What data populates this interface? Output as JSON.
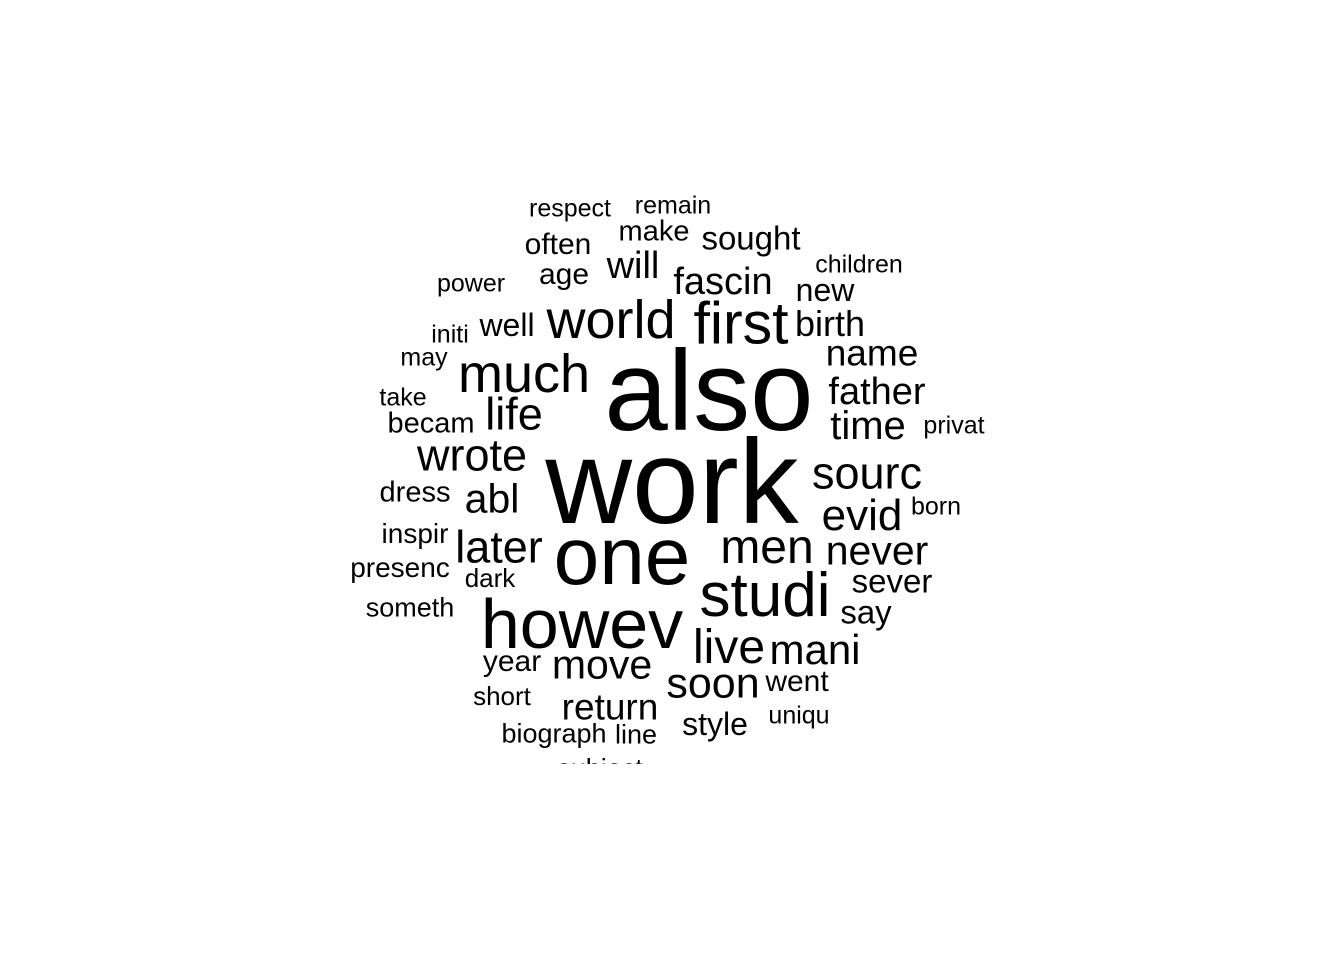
{
  "text_color": "#000000",
  "background": "#ffffff",
  "words": [
    {
      "text": "respect"
    },
    {
      "text": "remain"
    },
    {
      "text": "make"
    },
    {
      "text": "sought"
    },
    {
      "text": "often"
    },
    {
      "text": "will"
    },
    {
      "text": "age"
    },
    {
      "text": "fascin"
    },
    {
      "text": "children"
    },
    {
      "text": "power"
    },
    {
      "text": "new"
    },
    {
      "text": "world"
    },
    {
      "text": "first"
    },
    {
      "text": "well"
    },
    {
      "text": "birth"
    },
    {
      "text": "initi"
    },
    {
      "text": "name"
    },
    {
      "text": "may"
    },
    {
      "text": "much"
    },
    {
      "text": "also"
    },
    {
      "text": "father"
    },
    {
      "text": "take"
    },
    {
      "text": "life"
    },
    {
      "text": "becam"
    },
    {
      "text": "time"
    },
    {
      "text": "privat"
    },
    {
      "text": "wrote"
    },
    {
      "text": "work"
    },
    {
      "text": "sourc"
    },
    {
      "text": "dress"
    },
    {
      "text": "abl"
    },
    {
      "text": "evid"
    },
    {
      "text": "born"
    },
    {
      "text": "inspir"
    },
    {
      "text": "later"
    },
    {
      "text": "one"
    },
    {
      "text": "men"
    },
    {
      "text": "never"
    },
    {
      "text": "presenc"
    },
    {
      "text": "dark"
    },
    {
      "text": "sever"
    },
    {
      "text": "studi"
    },
    {
      "text": "someth"
    },
    {
      "text": "howev"
    },
    {
      "text": "say"
    },
    {
      "text": "live"
    },
    {
      "text": "mani"
    },
    {
      "text": "year"
    },
    {
      "text": "move"
    },
    {
      "text": "soon"
    },
    {
      "text": "went"
    },
    {
      "text": "short"
    },
    {
      "text": "return"
    },
    {
      "text": "style"
    },
    {
      "text": "uniqu"
    },
    {
      "text": "biograph"
    },
    {
      "text": "line"
    },
    {
      "text": "subject"
    }
  ]
}
